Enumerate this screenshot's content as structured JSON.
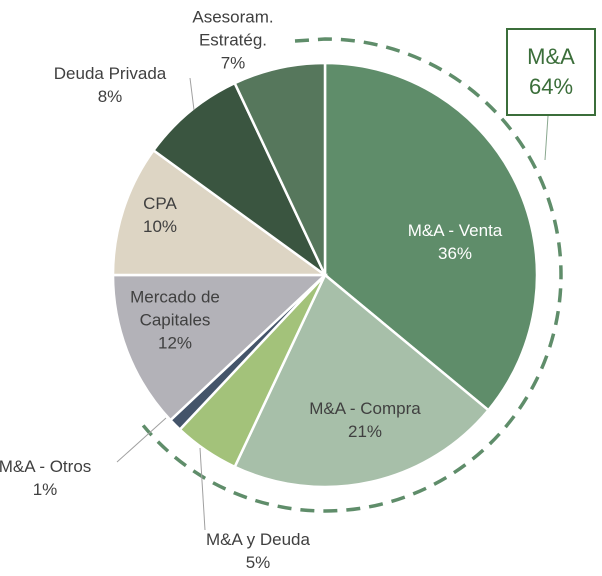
{
  "chart_data": {
    "type": "pie",
    "categories": [
      "M&A - Venta",
      "M&A - Compra",
      "M&A y Deuda",
      "M&A - Otros",
      "Mercado de Capitales",
      "CPA",
      "Deuda Privada",
      "Asesoram. Estratég."
    ],
    "values": [
      36,
      21,
      5,
      1,
      12,
      10,
      8,
      7
    ],
    "value_labels": [
      "36%",
      "21%",
      "5%",
      "1%",
      "12%",
      "10%",
      "8%",
      "7%"
    ],
    "colors": [
      "#5f8d6a",
      "#a7bfa9",
      "#a3c27a",
      "#44546a",
      "#b3b2b8",
      "#ddd5c4",
      "#3a5540",
      "#56775c"
    ],
    "annotation": {
      "label": "M&A",
      "value": 64,
      "value_label": "64%"
    }
  }
}
